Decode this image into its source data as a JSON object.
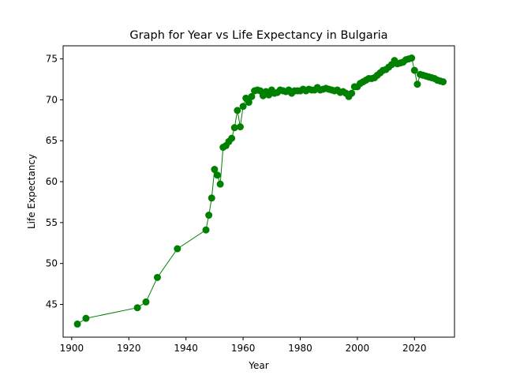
{
  "chart_data": {
    "type": "line",
    "title": "Graph for Year vs Life Expectancy in Bulgaria",
    "xlabel": "Year",
    "ylabel": "Life Expectancy",
    "xlim": [
      1897,
      2034
    ],
    "ylim": [
      41,
      76.6
    ],
    "xticks": [
      1900,
      1920,
      1940,
      1960,
      1980,
      2000,
      2020
    ],
    "yticks": [
      45,
      50,
      55,
      60,
      65,
      70,
      75
    ],
    "grid": false,
    "legend": "none",
    "series": [
      {
        "color": "#008000",
        "marker": "circle",
        "x": [
          1902,
          1905,
          1923,
          1926,
          1930,
          1937,
          1947,
          1948,
          1949,
          1950,
          1951,
          1952,
          1953,
          1954,
          1955,
          1956,
          1957,
          1958,
          1959,
          1960,
          1961,
          1962,
          1963,
          1964,
          1965,
          1966,
          1967,
          1968,
          1969,
          1970,
          1971,
          1972,
          1973,
          1974,
          1975,
          1976,
          1977,
          1978,
          1979,
          1980,
          1981,
          1982,
          1983,
          1984,
          1985,
          1986,
          1987,
          1988,
          1989,
          1990,
          1991,
          1992,
          1993,
          1994,
          1995,
          1996,
          1997,
          1998,
          1999,
          2000,
          2001,
          2002,
          2003,
          2004,
          2005,
          2006,
          2007,
          2008,
          2009,
          2010,
          2011,
          2012,
          2013,
          2014,
          2015,
          2016,
          2017,
          2018,
          2019,
          2020,
          2021,
          2022,
          2023,
          2024,
          2025,
          2026,
          2027,
          2028,
          2029,
          2030
        ],
        "y": [
          42.6,
          43.3,
          44.6,
          45.3,
          48.3,
          51.8,
          54.1,
          55.9,
          58.0,
          61.5,
          60.8,
          59.7,
          64.2,
          64.4,
          64.9,
          65.3,
          66.6,
          68.7,
          66.7,
          69.2,
          70.2,
          69.7,
          70.4,
          71.1,
          71.2,
          71.1,
          70.5,
          71.0,
          70.6,
          71.2,
          70.8,
          70.9,
          71.2,
          71.1,
          71.0,
          71.2,
          70.8,
          71.1,
          71.1,
          71.1,
          71.3,
          71.1,
          71.3,
          71.2,
          71.2,
          71.5,
          71.2,
          71.3,
          71.4,
          71.3,
          71.2,
          71.1,
          71.2,
          70.9,
          71.0,
          70.8,
          70.4,
          70.8,
          71.6,
          71.6,
          72.0,
          72.2,
          72.4,
          72.6,
          72.6,
          72.7,
          73.0,
          73.3,
          73.6,
          73.7,
          74.0,
          74.3,
          74.8,
          74.4,
          74.5,
          74.6,
          74.9,
          75.0,
          75.1,
          73.6,
          71.9,
          73.1,
          73.0,
          72.9,
          72.8,
          72.7,
          72.6,
          72.4,
          72.3,
          72.2
        ]
      }
    ]
  }
}
